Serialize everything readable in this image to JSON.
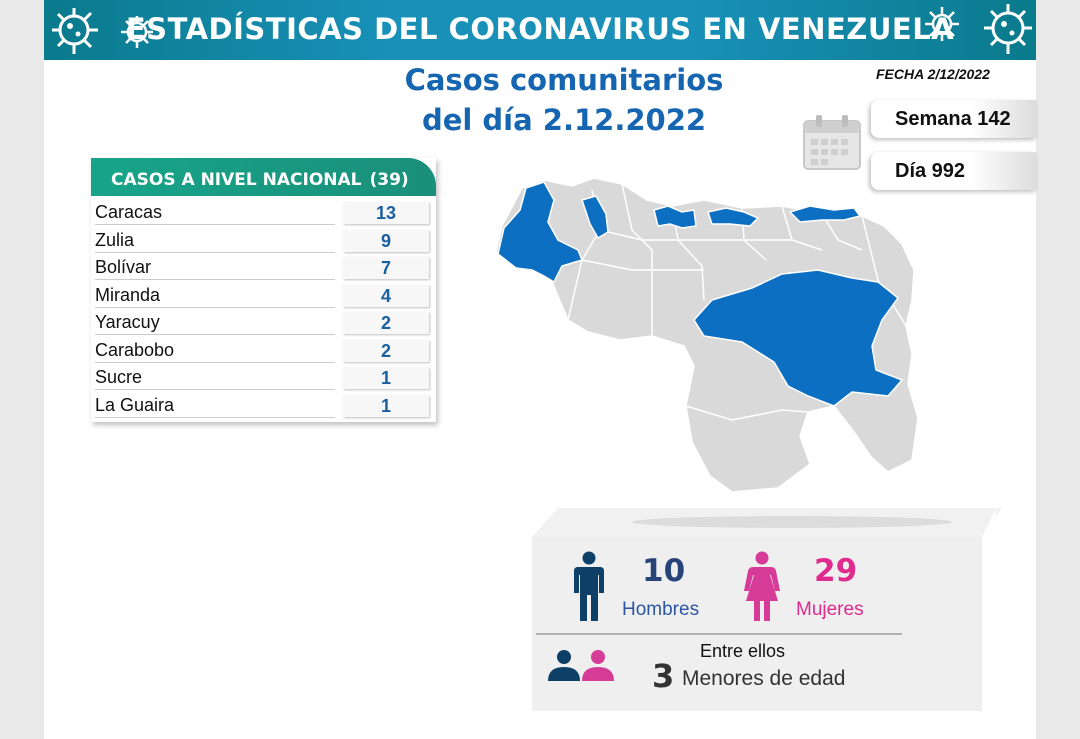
{
  "header": {
    "title": "ESTADÍSTICAS DEL CORONAVIRUS EN VENEZUELA"
  },
  "subtitle": {
    "line1": "Casos comunitarios",
    "line2": "del día 2.12.2022"
  },
  "fecha": "FECHA 2/12/2022",
  "semana": "Semana 142",
  "dia": "Día 992",
  "table": {
    "header_label": "CASOS A NIVEL NACIONAL",
    "header_total": "(39)",
    "rows": [
      {
        "name": "Caracas",
        "value": "13"
      },
      {
        "name": "Zulia",
        "value": "9"
      },
      {
        "name": "Bolívar",
        "value": "7"
      },
      {
        "name": "Miranda",
        "value": "4"
      },
      {
        "name": "Yaracuy",
        "value": "2"
      },
      {
        "name": "Carabobo",
        "value": "2"
      },
      {
        "name": "Sucre",
        "value": "1"
      },
      {
        "name": "La Guaira",
        "value": "1"
      }
    ]
  },
  "stats": {
    "men_count": "10",
    "men_label": "Hombres",
    "women_count": "29",
    "women_label": "Mujeres",
    "among_label": "Entre ellos",
    "minors_count": "3",
    "minors_label": "Menores de edad"
  },
  "colors": {
    "banner": "#1890b8",
    "title_blue": "#1565b0",
    "table_header_green": "#17a589",
    "map_highlight": "#0d6fc2",
    "map_base": "#d9d9d9",
    "men": "#0e3f66",
    "women": "#d63b97"
  },
  "icons": [
    "virus-icon",
    "calendar-icon",
    "man-icon",
    "woman-icon",
    "minors-icon"
  ]
}
